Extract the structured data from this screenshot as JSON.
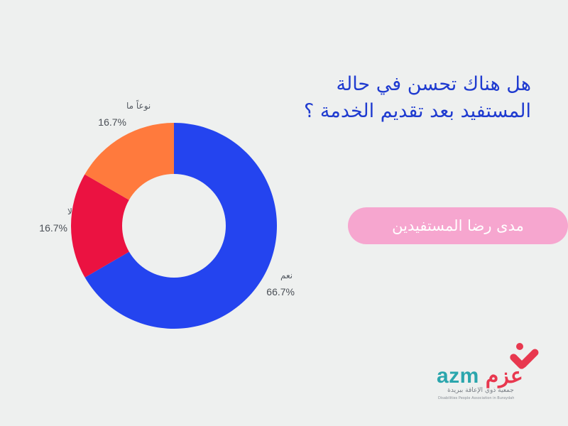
{
  "question": {
    "line1": "هل هناك تحسن في حالة",
    "line2": "المستفيد بعد تقديم الخدمة ؟"
  },
  "pill_label": "مدى رضا المستفيدين",
  "logo": {
    "latin": "azm",
    "arabic": "عزم",
    "subtitle_ar": "جمعية ذوي الإعاقة ببريدة",
    "subtitle_en": "Disabilities People Association in Buraydah"
  },
  "colors": {
    "background": "#eef0ef",
    "title": "#1f3bd0",
    "pill": "#f6a6cf",
    "logo_teal": "#2ba6ad",
    "logo_red": "#e8384f"
  },
  "chart_data": {
    "type": "pie",
    "donut": true,
    "title": "",
    "categories": [
      "نعم",
      "لا",
      "نوعاً ما"
    ],
    "values": [
      66.7,
      16.7,
      16.7
    ],
    "labels": [
      "66.7%",
      "16.7%",
      "16.7%"
    ],
    "colors": [
      "#2444ef",
      "#eb1241",
      "#ff7a3d"
    ],
    "legend": "none"
  }
}
